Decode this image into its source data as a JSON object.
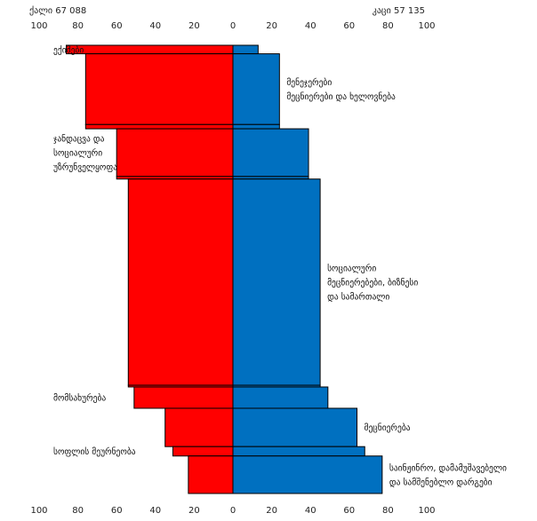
{
  "chart_data": {
    "type": "bar",
    "orientation": "horizontal-butterfly",
    "left_header": "ქალი 67 088",
    "right_header": "კაცი 57 135",
    "xticks": [
      "100",
      "80",
      "60",
      "40",
      "20",
      "0",
      "20",
      "40",
      "60",
      "80",
      "100"
    ],
    "xlim_left": [
      0,
      100
    ],
    "xlim_right": [
      0,
      100
    ],
    "grid": false,
    "series": [
      {
        "color": "#ff0000",
        "side": "left",
        "values": [
          86,
          76,
          76,
          60,
          60,
          54,
          54,
          51,
          35,
          31,
          23
        ]
      },
      {
        "color": "#0070c0",
        "side": "right",
        "values": [
          13,
          24,
          24,
          39,
          39,
          45,
          45,
          49,
          64,
          68,
          77
        ]
      }
    ],
    "bar_rows": [
      {
        "weight": 1.0
      },
      {
        "weight": 8.3
      },
      {
        "weight": 0.5
      },
      {
        "weight": 5.6
      },
      {
        "weight": 0.3
      },
      {
        "weight": 24.2
      },
      {
        "weight": 0.2
      },
      {
        "weight": 2.5
      },
      {
        "weight": 4.5
      },
      {
        "weight": 1.1
      },
      {
        "weight": 4.4
      }
    ],
    "category_labels": [
      {
        "side": "left",
        "row": 0,
        "lines": [
          "ექიმები"
        ]
      },
      {
        "side": "right",
        "row": 1,
        "lines": [
          "მენეჯერები",
          "მეცნიერები და ხელოვნება"
        ]
      },
      {
        "side": "left",
        "row": 3,
        "lines": [
          "ჯანდაცვა და",
          "სოციალური",
          "უზრუნველყოფა"
        ]
      },
      {
        "side": "right",
        "row": 5,
        "lines": [
          "სოციალური",
          "მეცნიერებები, ბიზნესი",
          "და სამართალი"
        ]
      },
      {
        "side": "left",
        "row": 7,
        "lines": [
          "მომსახურება"
        ]
      },
      {
        "side": "right",
        "row": 8,
        "lines": [
          "მეცნიერება"
        ]
      },
      {
        "side": "left",
        "row": 9,
        "lines": [
          "სოფლის მეურნეობა"
        ]
      },
      {
        "side": "right",
        "row": 10,
        "lines": [
          "საინჟინრო, დამამუშავებელი",
          "და სამშენებლო დარგები"
        ]
      }
    ]
  }
}
